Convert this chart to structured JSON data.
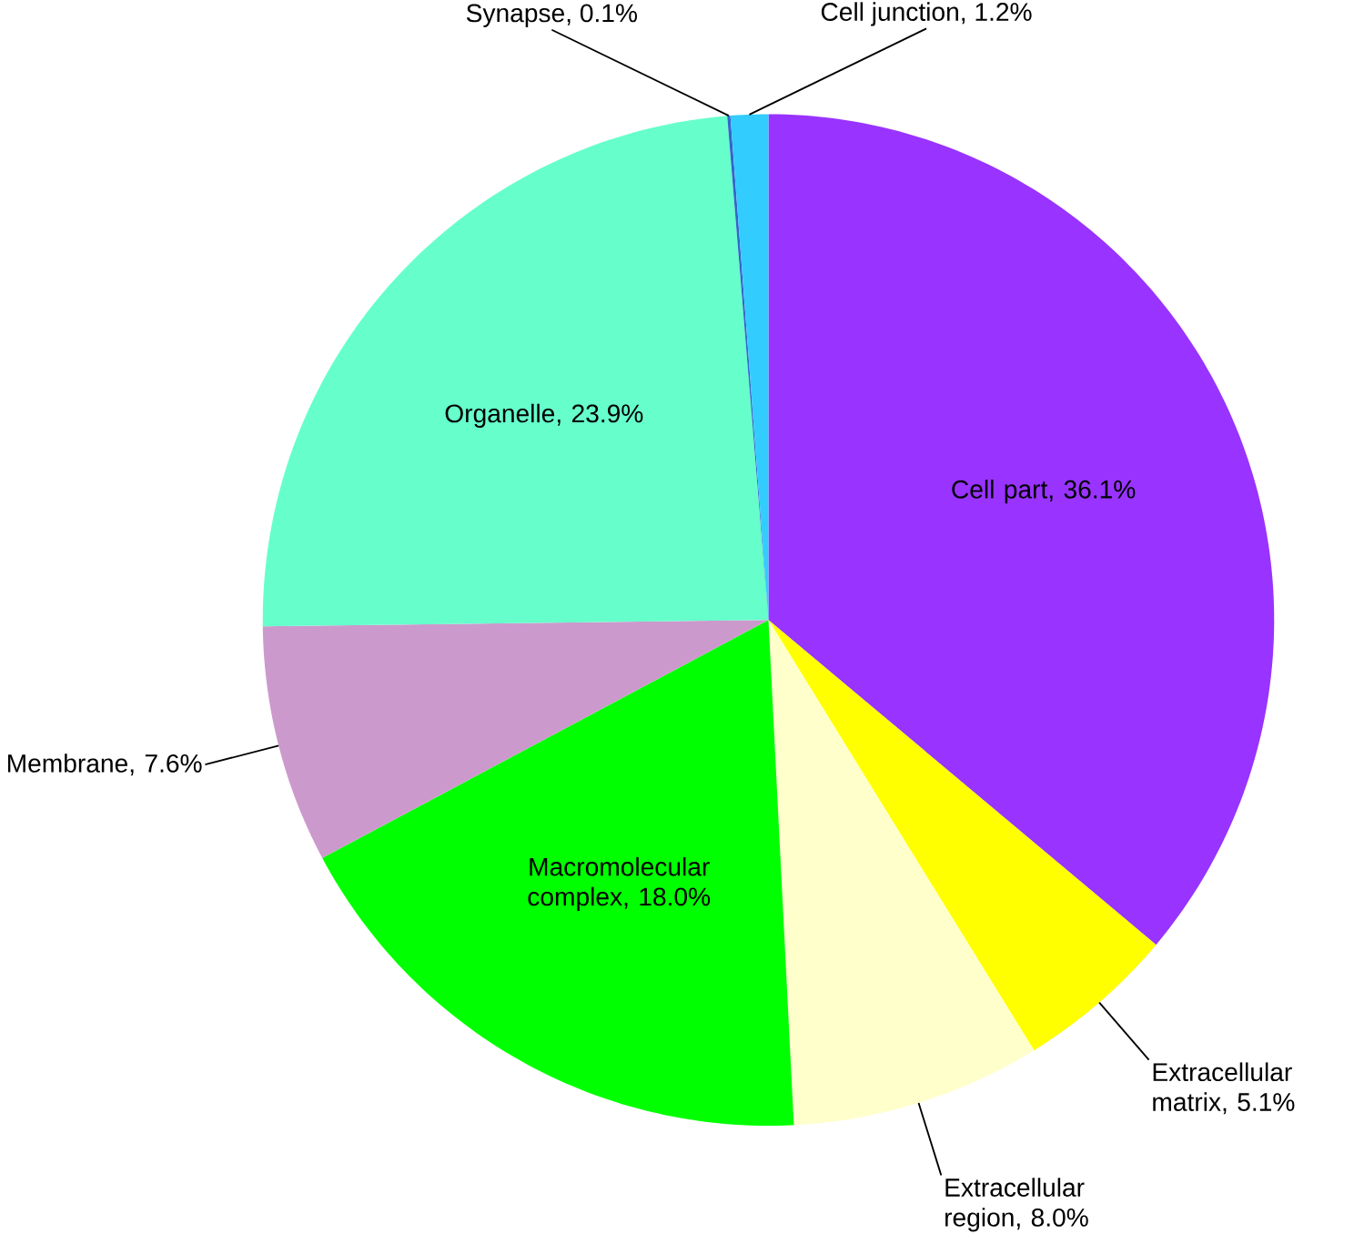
{
  "chart_data": {
    "type": "pie",
    "categories": [
      "Cell part, 36.1%",
      "Extracellular matrix, 5.1%",
      "Extracellular region, 8.0%",
      "Macromolecular complex, 18.0%",
      "Membrane, 7.6%",
      "Organelle, 23.9%",
      "Synapse, 0.1%",
      "Cell junction, 1.2%"
    ],
    "values": [
      36.1,
      5.1,
      8.0,
      18.0,
      7.6,
      23.9,
      0.1,
      1.2
    ],
    "colors": [
      "#9933ff",
      "#ffff00",
      "#ffffcc",
      "#00ff00",
      "#cc99cc",
      "#66ffcc",
      "#3366cc",
      "#33ccff"
    ]
  }
}
